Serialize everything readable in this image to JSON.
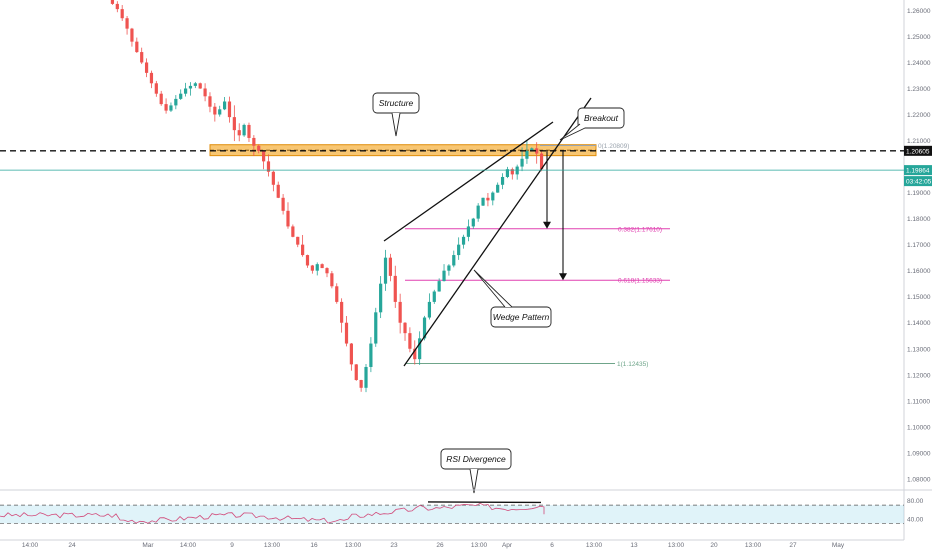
{
  "chart_data": {
    "type": "candlestick",
    "y_axis": {
      "ticks": [
        "1.26000",
        "1.25000",
        "1.24000",
        "1.23000",
        "1.22000",
        "1.21000",
        "1.19000",
        "1.18000",
        "1.17000",
        "1.16000",
        "1.15000",
        "1.14000",
        "1.13000",
        "1.12000",
        "1.11000",
        "1.10000",
        "1.09000",
        "1.08000"
      ],
      "ylim": [
        1.0765,
        1.264
      ]
    },
    "x_axis": {
      "ticks": [
        "14:00",
        "24",
        "Mar",
        "14:00",
        "9",
        "13:00",
        "16",
        "13:00",
        "23",
        "26",
        "13:00",
        "Apr",
        "6",
        "13:00",
        "13",
        "13:00",
        "20",
        "13:00",
        "27",
        "May"
      ]
    },
    "price_labels": {
      "resistance": {
        "value": 1.20605,
        "text": "1.20605"
      },
      "current": {
        "value": 1.19864,
        "text": "1.19864"
      },
      "countdown": "03:42:05"
    },
    "structure_zone": {
      "low": 1.2042,
      "high": 1.2084
    },
    "fibonacci": [
      {
        "level": 0,
        "text": "0(1.20809)",
        "value": 1.20809
      },
      {
        "level": 0.382,
        "text": "0.382(1.17610)",
        "value": 1.1761
      },
      {
        "level": 0.618,
        "text": "0.618(1.15633)",
        "value": 1.15633
      },
      {
        "level": 1,
        "text": "1(1.12435)",
        "value": 1.12435
      }
    ],
    "annotations": {
      "structure": "Structure",
      "breakout": "Breakout",
      "wedge": "Wedge Pattern",
      "rsi_divergence": "RSI Divergence"
    },
    "rsi": {
      "ticks": [
        "80.00",
        "40.00"
      ],
      "levels": [
        70,
        30
      ]
    },
    "price_path": [
      1.264,
      1.2625,
      1.2605,
      1.257,
      1.253,
      1.248,
      1.244,
      1.24,
      1.236,
      1.232,
      1.228,
      1.224,
      1.2215,
      1.2235,
      1.226,
      1.228,
      1.23,
      1.231,
      1.232,
      1.23,
      1.227,
      1.223,
      1.22,
      1.222,
      1.225,
      1.219,
      1.214,
      1.212,
      1.216,
      1.211,
      1.208,
      1.206,
      1.202,
      1.198,
      1.193,
      1.188,
      1.183,
      1.177,
      1.173,
      1.17,
      1.166,
      1.162,
      1.16,
      1.1625,
      1.161,
      1.159,
      1.154,
      1.148,
      1.14,
      1.132,
      1.124,
      1.118,
      1.115,
      1.123,
      1.132,
      1.144,
      1.155,
      1.165,
      1.158,
      1.148,
      1.14,
      1.136,
      1.13,
      1.126,
      1.134,
      1.142,
      1.148,
      1.152,
      1.156,
      1.16,
      1.162,
      1.166,
      1.17,
      1.173,
      1.177,
      1.18,
      1.185,
      1.188,
      1.187,
      1.19,
      1.193,
      1.196,
      1.199,
      1.197,
      1.2,
      1.203,
      1.206,
      1.207,
      1.205,
      1.199
    ]
  }
}
